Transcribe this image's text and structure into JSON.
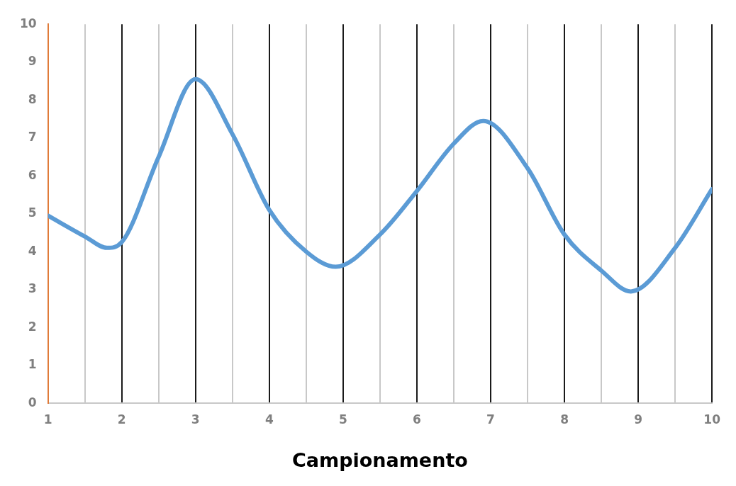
{
  "chart_data": {
    "type": "line",
    "xlabel": "Campionamento",
    "x": [
      1,
      1.5,
      1.8,
      2,
      2.5,
      3,
      3.5,
      4,
      4.5,
      4.9,
      5.5,
      6,
      6.5,
      6.9,
      7.5,
      8,
      8.5,
      8.9,
      9.5,
      10
    ],
    "series": [
      {
        "color": "#5b9bd5",
        "values": [
          4.95,
          4.4,
          4.1,
          4.25,
          6.5,
          8.55,
          7.1,
          5.1,
          4.0,
          3.6,
          4.45,
          5.6,
          6.85,
          7.45,
          6.2,
          4.45,
          3.5,
          2.95,
          4.1,
          5.65
        ]
      }
    ],
    "xlim": [
      1,
      10
    ],
    "xticks": [
      1,
      {
        "value": 1.5,
        "label": null
      },
      2,
      {
        "value": 2.5,
        "label": null
      },
      3,
      {
        "value": 3.5,
        "label": null
      },
      4,
      {
        "value": 4.5,
        "label": null
      },
      5,
      {
        "value": 5.5,
        "label": null
      },
      6,
      {
        "value": 6.5,
        "label": null
      },
      7,
      {
        "value": 7.5,
        "label": null
      },
      8,
      {
        "value": 8.5,
        "label": null
      },
      9,
      {
        "value": 9.5,
        "label": null
      },
      10
    ],
    "ylim": [
      0,
      10
    ],
    "yticks": [
      0,
      1,
      2,
      3,
      4,
      5,
      6,
      7,
      8,
      9,
      10
    ],
    "grid": "x",
    "legend": false,
    "marker": "none",
    "line_style": "solid"
  }
}
